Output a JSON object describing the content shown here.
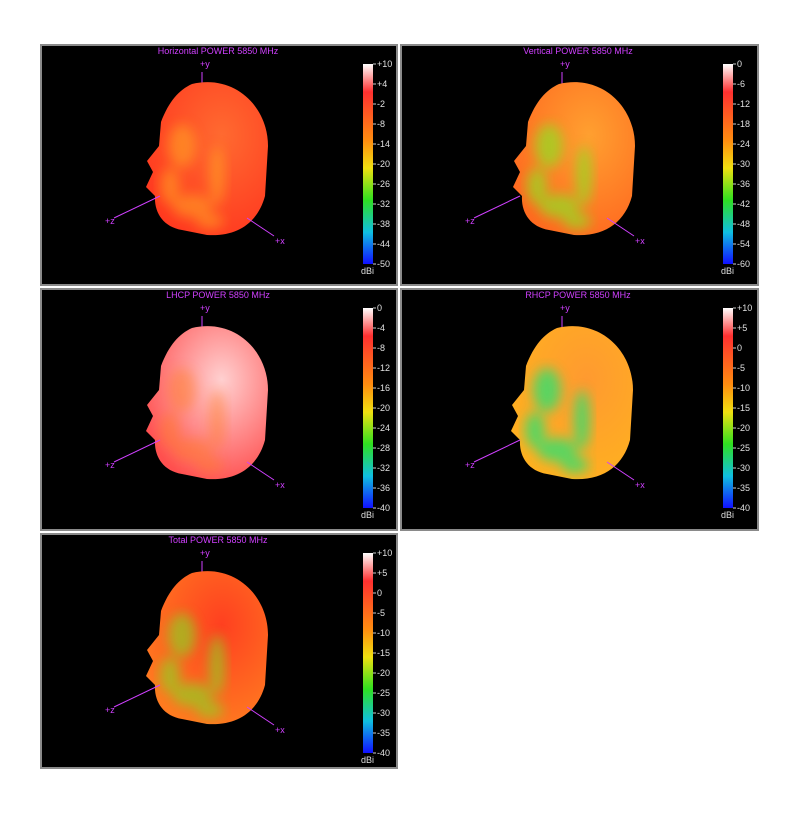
{
  "panels": [
    {
      "title": "Horizontal POWER 5850  MHz",
      "axes": {
        "y": "+y",
        "z": "+z",
        "x": "+x"
      },
      "unit": "dBi",
      "ticks": [
        {
          "value": 10,
          "label": "+10"
        },
        {
          "value": 4,
          "label": "+4"
        },
        -2,
        -8,
        -14,
        -20,
        -26,
        -32,
        -38,
        -44,
        -50
      ]
    },
    {
      "title": "Vertical POWER 5850  MHz",
      "axes": {
        "y": "+y",
        "z": "+z",
        "x": "+x"
      },
      "unit": "dBi",
      "ticks": [
        0,
        -6,
        -12,
        -18,
        -24,
        -30,
        -36,
        -42,
        -48,
        -54,
        -60
      ]
    },
    {
      "title": "LHCP POWER 5850  MHz",
      "axes": {
        "y": "+y",
        "z": "+z",
        "x": "+x"
      },
      "unit": "dBi",
      "ticks": [
        0,
        -4,
        -8,
        -12,
        -16,
        -20,
        -24,
        -28,
        -32,
        -36,
        -40
      ]
    },
    {
      "title": "RHCP POWER 5850  MHz",
      "axes": {
        "y": "+y",
        "z": "+z",
        "x": "+x"
      },
      "unit": "dBi",
      "ticks": [
        {
          "value": 10,
          "label": "+10"
        },
        {
          "value": 5,
          "label": "+5"
        },
        0,
        -5,
        -10,
        -15,
        -20,
        -25,
        -30,
        -35,
        -40
      ]
    },
    {
      "title": "Total POWER 5850  MHz",
      "axes": {
        "y": "+y",
        "z": "+z",
        "x": "+x"
      },
      "unit": "dBi",
      "ticks": [
        {
          "value": 10,
          "label": "+10"
        },
        {
          "value": 5,
          "label": "+5"
        },
        0,
        -5,
        -10,
        -15,
        -20,
        -25,
        -30,
        -35,
        -40
      ]
    }
  ]
}
